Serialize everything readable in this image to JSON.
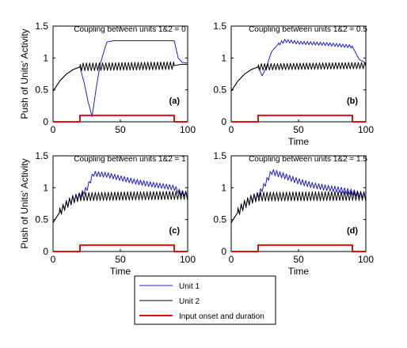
{
  "figure": {
    "ylabel": "Push of Units' Activity",
    "colors": {
      "unit1": "#1f1fd6",
      "unit2": "#000000",
      "input": "#e01010"
    }
  },
  "legend": {
    "placement": "bottom-center",
    "entries": [
      {
        "label": "Unit 1",
        "color": "#1f1fd6"
      },
      {
        "label": "Unit 2",
        "color": "#000000"
      },
      {
        "label": "Input onset and duration",
        "color": "#e01010"
      }
    ]
  },
  "chart_data": [
    {
      "type": "line",
      "title": "Coupling between units 1&2 = 0",
      "tag": "(a)",
      "xlabel": "",
      "ylabel": "Push of Units' Activity",
      "xlim": [
        0,
        100
      ],
      "ylim": [
        0,
        1.5
      ],
      "xticks": [
        0,
        50,
        100
      ],
      "yticks": [
        0,
        0.5,
        1,
        1.5
      ],
      "series": [
        {
          "name": "Unit 1",
          "color": "#1f1fd6",
          "x": [
            0,
            5,
            10,
            15,
            20,
            23,
            26,
            29,
            32,
            35,
            38,
            40,
            45,
            50,
            60,
            70,
            80,
            90,
            93,
            96,
            100
          ],
          "y": [
            0.48,
            0.64,
            0.75,
            0.82,
            0.86,
            0.62,
            0.32,
            0.08,
            0.52,
            0.9,
            1.12,
            1.25,
            1.27,
            1.27,
            1.27,
            1.27,
            1.27,
            1.27,
            1.0,
            0.93,
            0.92
          ]
        },
        {
          "name": "Unit 2",
          "color": "#000000",
          "x": [
            0,
            5,
            10,
            15,
            20,
            90,
            95,
            100
          ],
          "y": [
            0.48,
            0.64,
            0.75,
            0.82,
            0.86,
            0.88,
            0.9,
            0.9
          ],
          "oscillation": {
            "start": 20,
            "end": 90,
            "amplitude": 0.06,
            "period": 2.4
          }
        },
        {
          "name": "Input onset and duration",
          "color": "#e01010",
          "x": [
            0,
            20,
            20,
            90,
            90,
            100
          ],
          "y": [
            0,
            0,
            0.1,
            0.1,
            0,
            0
          ]
        }
      ]
    },
    {
      "type": "line",
      "title": "Coupling between units 1&2 = 0.5",
      "tag": "(b)",
      "xlabel": "Time",
      "ylabel": "",
      "xlim": [
        0,
        100
      ],
      "ylim": [
        0,
        1.5
      ],
      "xticks": [
        0,
        50,
        100
      ],
      "yticks": [
        0,
        0.5,
        1,
        1.5
      ],
      "series": [
        {
          "name": "Unit 1",
          "color": "#1f1fd6",
          "x": [
            0,
            5,
            10,
            15,
            20,
            23,
            26,
            30,
            35,
            40,
            50,
            60,
            70,
            80,
            90,
            95,
            100
          ],
          "y": [
            0.48,
            0.64,
            0.75,
            0.82,
            0.86,
            0.72,
            0.85,
            1.1,
            1.22,
            1.27,
            1.24,
            1.23,
            1.22,
            1.2,
            1.18,
            0.98,
            0.92
          ],
          "oscillation": {
            "start": 35,
            "end": 90,
            "amplitude": 0.025,
            "period": 2.4
          }
        },
        {
          "name": "Unit 2",
          "color": "#000000",
          "x": [
            0,
            5,
            10,
            15,
            20,
            90,
            95,
            100
          ],
          "y": [
            0.48,
            0.64,
            0.75,
            0.82,
            0.86,
            0.88,
            0.88,
            0.88
          ],
          "oscillation": {
            "start": 20,
            "end": 100,
            "amplitude": 0.05,
            "period": 2.4
          }
        },
        {
          "name": "Input onset and duration",
          "color": "#e01010",
          "x": [
            0,
            20,
            20,
            90,
            90,
            100
          ],
          "y": [
            0,
            0,
            0.1,
            0.1,
            0,
            0
          ]
        }
      ]
    },
    {
      "type": "line",
      "title": "Coupling between units 1&2 = 1",
      "tag": "(c)",
      "xlabel": "Time",
      "ylabel": "Push of Units' Activity",
      "xlim": [
        0,
        100
      ],
      "ylim": [
        0,
        1.5
      ],
      "xticks": [
        0,
        50,
        100
      ],
      "yticks": [
        0,
        0.5,
        1,
        1.5
      ],
      "series": [
        {
          "name": "Unit 1",
          "color": "#1f1fd6",
          "x": [
            0,
            5,
            10,
            15,
            20,
            25,
            30,
            40,
            50,
            60,
            70,
            80,
            90,
            95,
            100
          ],
          "y": [
            0.45,
            0.62,
            0.74,
            0.82,
            0.88,
            0.98,
            1.22,
            1.2,
            1.15,
            1.1,
            1.06,
            1.03,
            1.0,
            0.92,
            0.9
          ],
          "oscillation": {
            "start": 5,
            "end": 100,
            "amplitude": 0.04,
            "period": 2.4
          }
        },
        {
          "name": "Unit 2",
          "color": "#000000",
          "x": [
            0,
            5,
            10,
            15,
            20,
            90,
            95,
            100
          ],
          "y": [
            0.45,
            0.62,
            0.74,
            0.82,
            0.86,
            0.88,
            0.88,
            0.88
          ],
          "oscillation": {
            "start": 5,
            "end": 100,
            "amplitude": 0.065,
            "period": 2.4
          }
        },
        {
          "name": "Input onset and duration",
          "color": "#e01010",
          "x": [
            0,
            20,
            20,
            90,
            90,
            100
          ],
          "y": [
            0,
            0,
            0.1,
            0.1,
            0,
            0
          ]
        }
      ]
    },
    {
      "type": "line",
      "title": "Coupling between units 1&2 = 1.5",
      "tag": "(d)",
      "xlabel": "Time",
      "ylabel": "",
      "xlim": [
        0,
        100
      ],
      "ylim": [
        0,
        1.5
      ],
      "xticks": [
        0,
        50,
        100
      ],
      "yticks": [
        0,
        0.5,
        1,
        1.5
      ],
      "series": [
        {
          "name": "Unit 1",
          "color": "#1f1fd6",
          "x": [
            0,
            5,
            10,
            15,
            20,
            25,
            30,
            40,
            50,
            60,
            70,
            80,
            90,
            95,
            100
          ],
          "y": [
            0.45,
            0.62,
            0.74,
            0.82,
            0.88,
            1.05,
            1.25,
            1.18,
            1.1,
            1.04,
            1.0,
            0.97,
            0.93,
            0.9,
            0.88
          ],
          "oscillation": {
            "start": 5,
            "end": 100,
            "amplitude": 0.045,
            "period": 2.4
          }
        },
        {
          "name": "Unit 2",
          "color": "#000000",
          "x": [
            0,
            5,
            10,
            15,
            20,
            90,
            95,
            100
          ],
          "y": [
            0.45,
            0.62,
            0.74,
            0.82,
            0.86,
            0.87,
            0.87,
            0.87
          ],
          "oscillation": {
            "start": 5,
            "end": 100,
            "amplitude": 0.07,
            "period": 2.4
          }
        },
        {
          "name": "Input onset and duration",
          "color": "#e01010",
          "x": [
            0,
            20,
            20,
            90,
            90,
            100
          ],
          "y": [
            0,
            0,
            0.1,
            0.1,
            0,
            0
          ]
        }
      ]
    }
  ]
}
